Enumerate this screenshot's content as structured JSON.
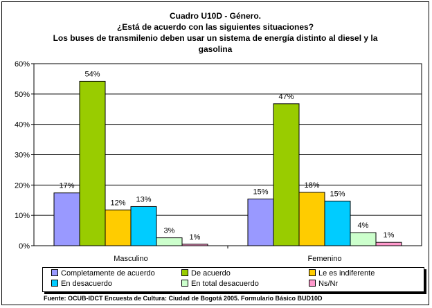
{
  "title_lines": [
    "Cuadro U10D - Género.",
    "¿Está de acuerdo con las siguientes situaciones?",
    "Los buses de transmilenio deben usar un sistema de energía distinto al diesel y la",
    "gasolina"
  ],
  "source": "Fuente: OCUB-IDCT Encuesta de Cultura: Ciudad de Bogotá 2005. Formulario Básico BUD10D",
  "chart_data": {
    "type": "bar",
    "categories": [
      "Masculino",
      "Femenino"
    ],
    "series": [
      {
        "name": "Completamente de acuerdo",
        "values": [
          17.4,
          15.4
        ],
        "labels": [
          "17%",
          "15%"
        ],
        "color": "#9999ff"
      },
      {
        "name": "De acuerdo",
        "values": [
          54.2,
          46.8
        ],
        "labels": [
          "54%",
          "47%"
        ],
        "color": "#99cc00"
      },
      {
        "name": "Le es indiferente",
        "values": [
          11.8,
          17.6
        ],
        "labels": [
          "12%",
          "18%"
        ],
        "color": "#ffcc00"
      },
      {
        "name": "En desacuerdo",
        "values": [
          12.9,
          14.7
        ],
        "labels": [
          "13%",
          "15%"
        ],
        "color": "#00ccff"
      },
      {
        "name": "En total desacuerdo",
        "values": [
          2.6,
          4.3
        ],
        "labels": [
          "3%",
          "4%"
        ],
        "color": "#ccffcc"
      },
      {
        "name": "Ns/Nr",
        "values": [
          0.5,
          1.1
        ],
        "labels": [
          "1%",
          "1%"
        ],
        "color": "#ff99cc"
      }
    ],
    "yticks": [
      "0%",
      "10%",
      "20%",
      "30%",
      "40%",
      "50%",
      "60%"
    ],
    "ylim": [
      0,
      60
    ],
    "grid": true,
    "plot_background": "#ffffff",
    "legend_position": "bottom"
  }
}
